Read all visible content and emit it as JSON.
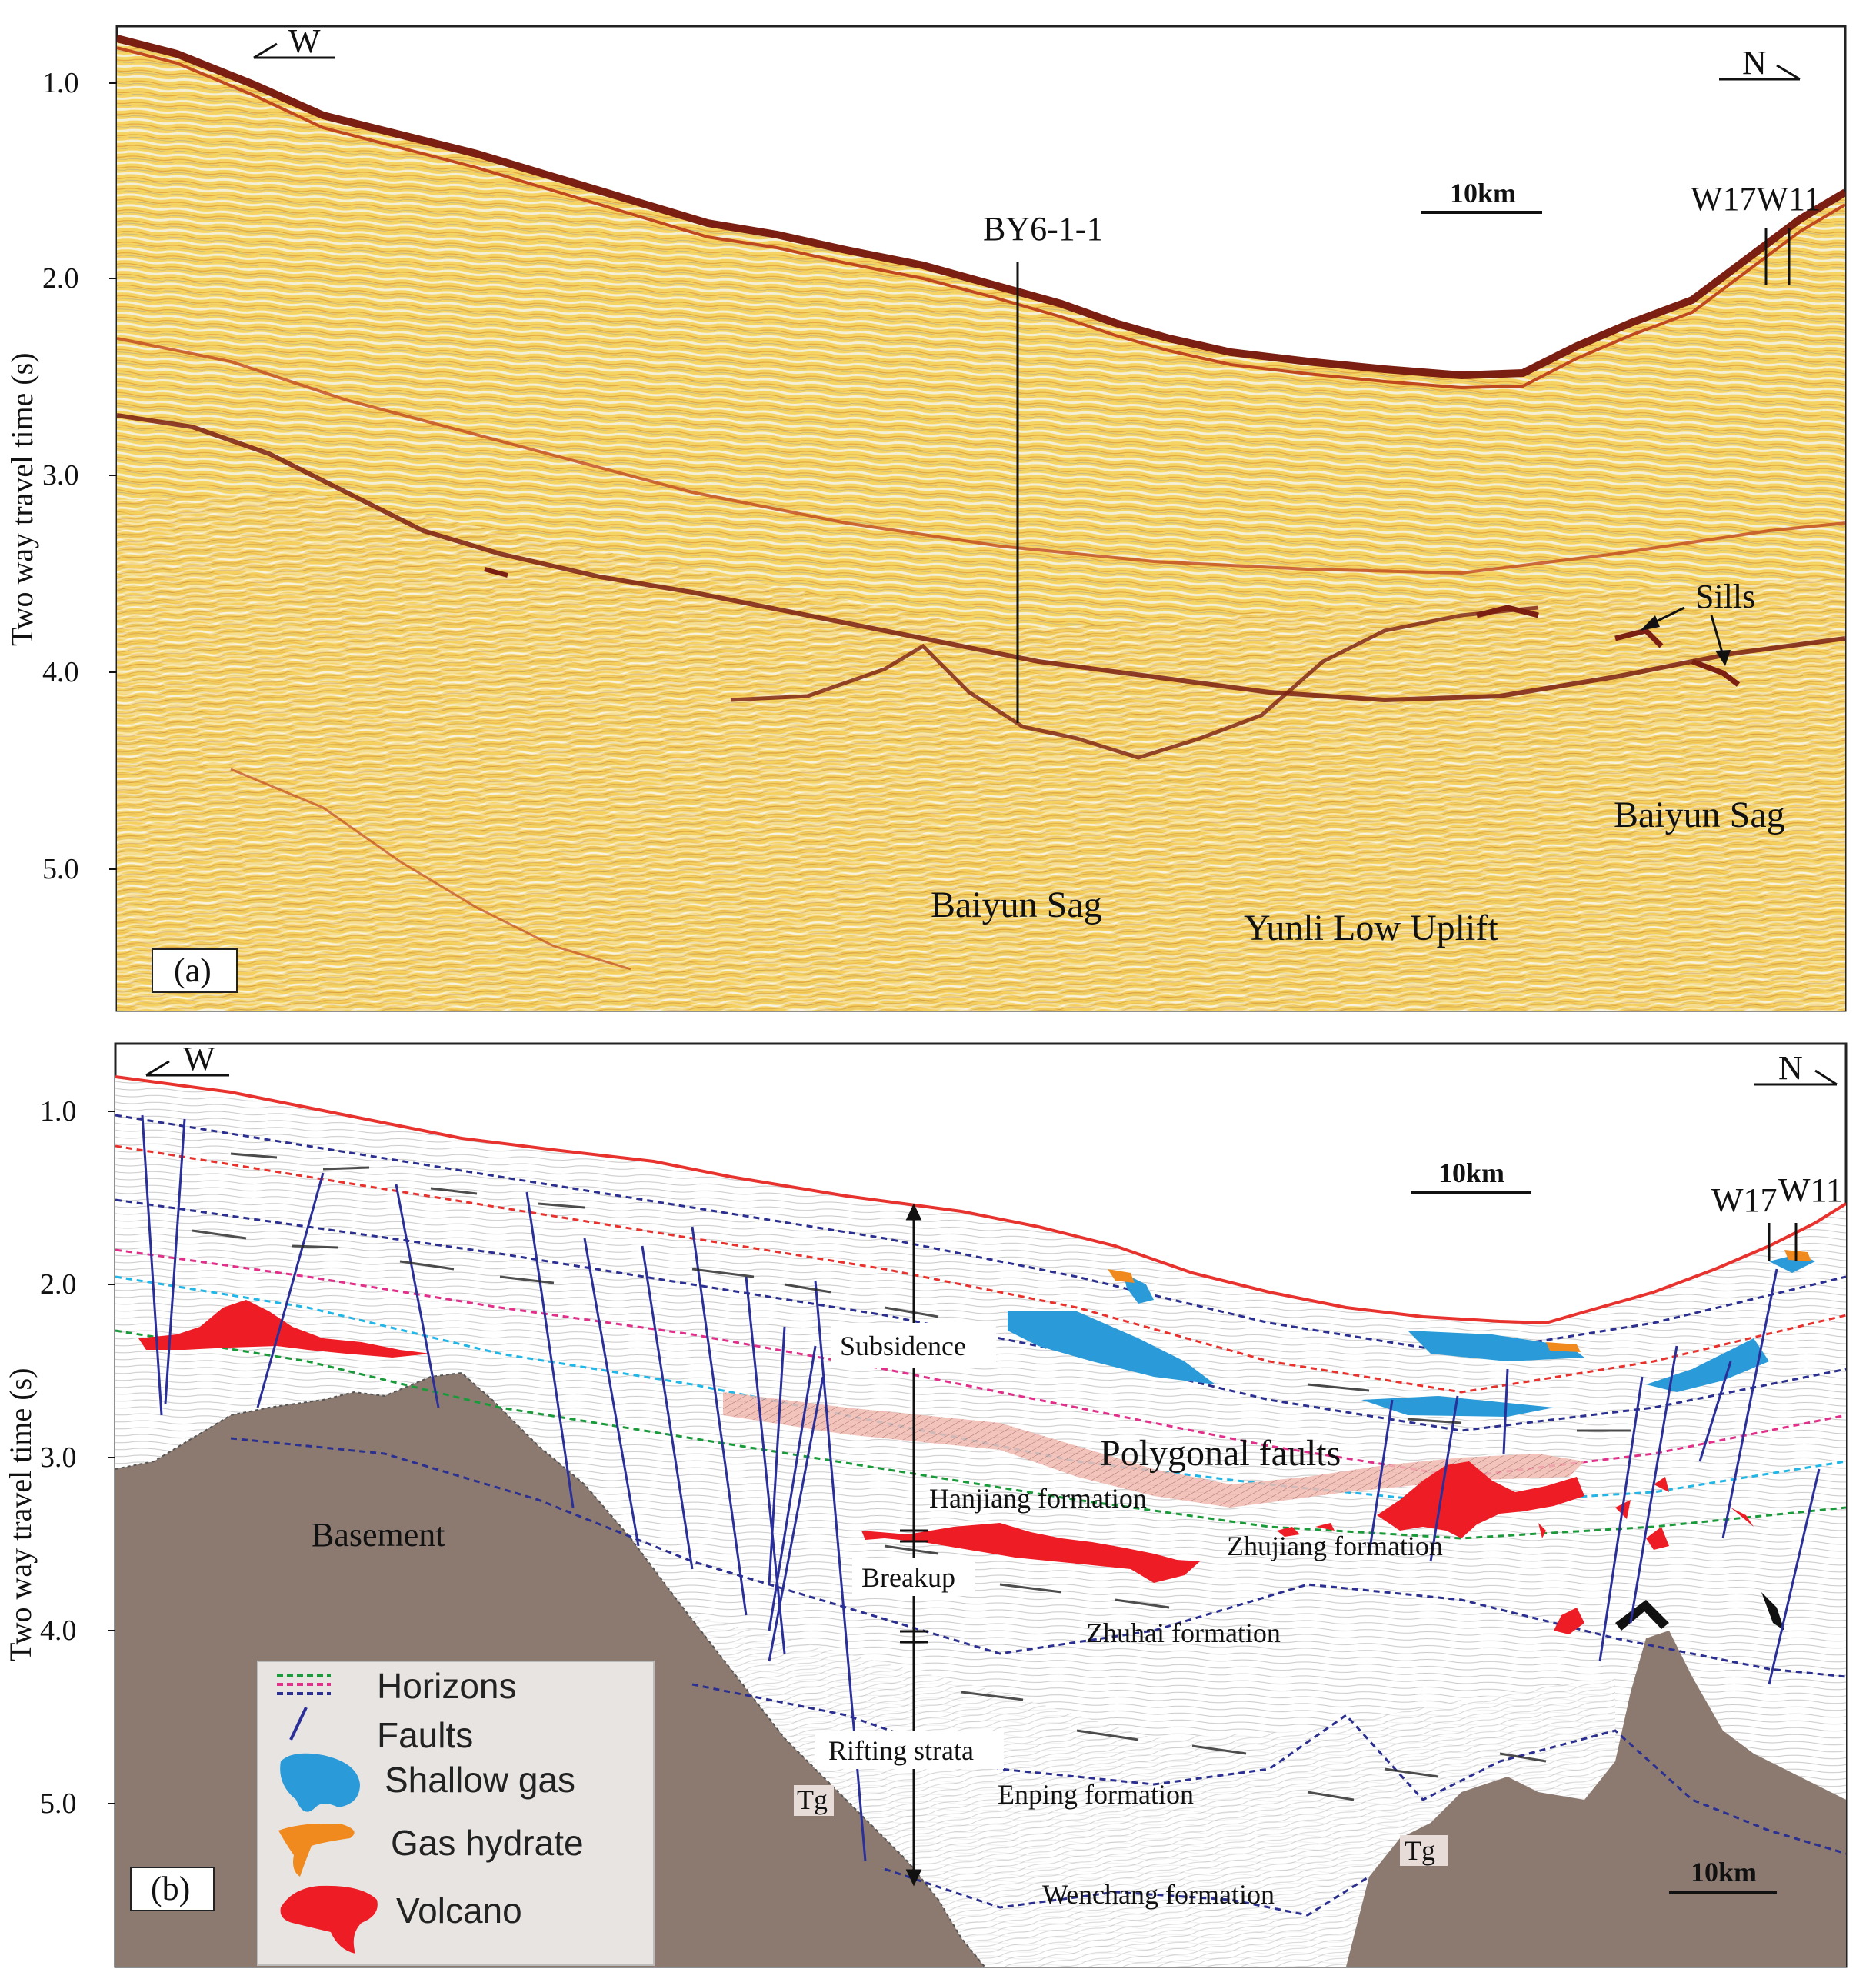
{
  "colors": {
    "seismic_bg": "#f6d463",
    "seismic_dark": "#7a1f12",
    "seismic_mid": "#c0481e",
    "basement": "#8c7a70",
    "horizon_red": "#e8322e",
    "horizon_blue": "#2b2f8f",
    "horizon_green": "#1a9a3a",
    "horizon_pink": "#e0308a",
    "horizon_cyan": "#22b6e6",
    "fault": "#2a2f9a",
    "shallow_gas": "#2a9ad8",
    "gas_hydrate": "#f18a1e",
    "volcano": "#ee1c24",
    "polygonal": "#f0b9b0"
  },
  "panel_a": {
    "label": "(a)",
    "direction_left": "W",
    "direction_right": "N",
    "scale_bar": "10km",
    "well_center": "BY6-1-1",
    "wells_right": "W17W11",
    "sills": "Sills",
    "baiyun_sag_center": "Baiyun Sag",
    "yunli": "Yunli Low Uplift",
    "baiyun_sag_right": "Baiyun Sag",
    "y_axis_label": "Two way travel time (s)",
    "y_ticks": [
      "1.0",
      "2.0",
      "3.0",
      "4.0",
      "5.0"
    ]
  },
  "panel_b": {
    "label": "(b)",
    "direction_left": "W",
    "direction_right": "N",
    "scale_bar_top": "10km",
    "scale_bar_bottom": "10km",
    "well_w17": "W17",
    "well_w11": "W11",
    "subsidence": "Subsidence",
    "breakup": "Breakup",
    "rifting": "Rifting strata",
    "polygonal_faults": "Polygonal faults",
    "hanjiang": "Hanjiang formation",
    "zhujiang": "Zhujiang formation",
    "zhuhai": "Zhuhai formation",
    "enping": "Enping formation",
    "wenchang": "Wenchang formation",
    "basement": "Basement",
    "tg_left": "Tg",
    "tg_right": "Tg",
    "y_axis_label": "Two way travel time (s)",
    "y_ticks": [
      "1.0",
      "2.0",
      "3.0",
      "4.0",
      "5.0"
    ],
    "legend": {
      "horizons": "Horizons",
      "faults": "Faults",
      "shallow_gas": "Shallow gas",
      "gas_hydrate": "Gas hydrate",
      "volcano": "Volcano"
    }
  }
}
